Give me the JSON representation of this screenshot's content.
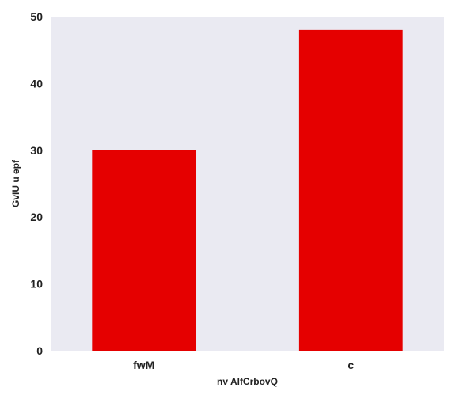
{
  "chart_data": {
    "type": "bar",
    "categories": [
      "fwM",
      "c"
    ],
    "values": [
      30,
      48
    ],
    "xlabel": "nv AlfCrbovQ",
    "ylabel": "GvIU u epf",
    "ylim": [
      0,
      50
    ],
    "yticks": [
      0,
      10,
      20,
      30,
      40,
      50
    ],
    "grid": false,
    "bar_color": "#e50000",
    "plot_background": "#eaeaf2"
  }
}
